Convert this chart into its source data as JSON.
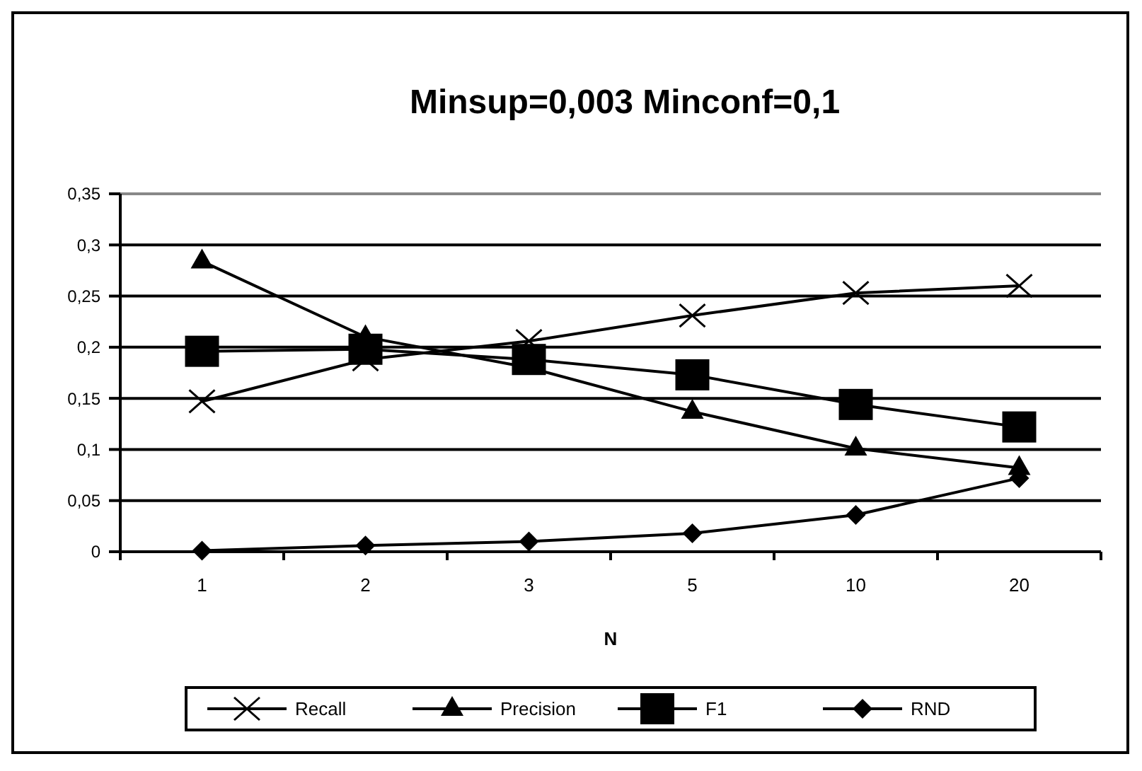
{
  "chart_data": {
    "type": "line",
    "title": "Minsup=0,003 Minconf=0,1",
    "xlabel": "N",
    "categories": [
      "1",
      "2",
      "3",
      "5",
      "10",
      "20"
    ],
    "series": [
      {
        "name": "Recall",
        "color": "#000000",
        "marker": "cross",
        "values": [
          0.147,
          0.188,
          0.206,
          0.231,
          0.253,
          0.26
        ]
      },
      {
        "name": "Precision",
        "color": "#000000",
        "marker": "triangle",
        "values": [
          0.284,
          0.21,
          0.18,
          0.137,
          0.101,
          0.082
        ]
      },
      {
        "name": "F1",
        "color": "#000000",
        "marker": "square",
        "values": [
          0.196,
          0.198,
          0.188,
          0.173,
          0.144,
          0.122
        ]
      },
      {
        "name": "RND",
        "color": "#000000",
        "marker": "diamond",
        "values": [
          0.001,
          0.006,
          0.01,
          0.018,
          0.036,
          0.072
        ]
      }
    ],
    "ylim": [
      0,
      0.35
    ],
    "yticks": [
      {
        "value": 0,
        "label": "0"
      },
      {
        "value": 0.05,
        "label": "0,05"
      },
      {
        "value": 0.1,
        "label": "0,1"
      },
      {
        "value": 0.15,
        "label": "0,15"
      },
      {
        "value": 0.2,
        "label": "0,2"
      },
      {
        "value": 0.25,
        "label": "0,25"
      },
      {
        "value": 0.3,
        "label": "0,3"
      },
      {
        "value": 0.35,
        "label": "0,35"
      }
    ],
    "grid": "y",
    "legend": "bottom"
  }
}
